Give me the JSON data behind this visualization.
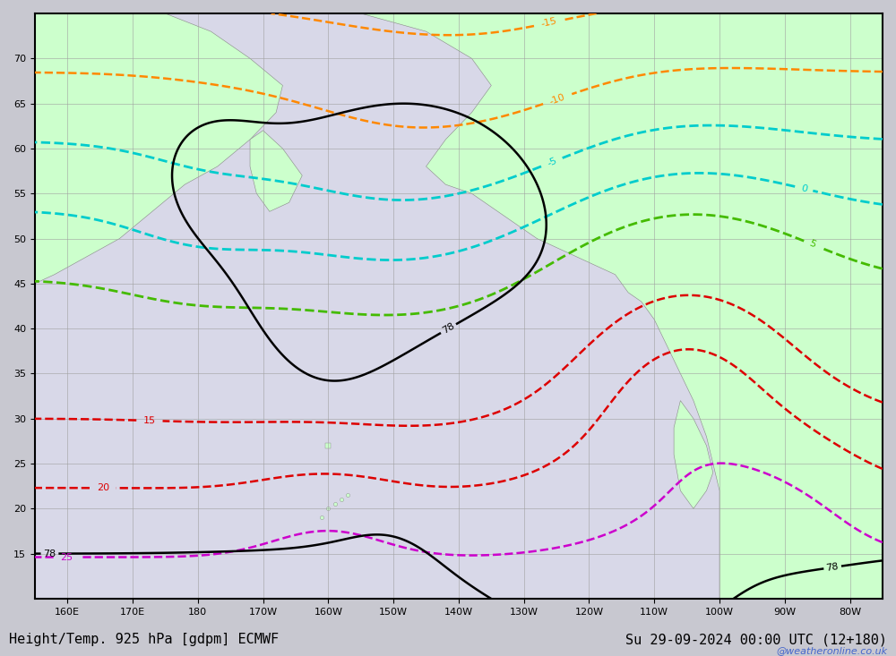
{
  "title_left": "Height/Temp. 925 hPa [gdpm] ECMWF",
  "title_right": "Su 29-09-2024 00:00 UTC (12+180)",
  "watermark": "@weatheronline.co.uk",
  "background_land": "#ccffcc",
  "background_sea": "#d8d8e8",
  "background_fig": "#c8c8d0",
  "grid_color": "#a0a0a0",
  "border_color": "#000000",
  "font_size_title": 11,
  "font_size_labels": 8,
  "font_size_watermark": 8,
  "xlim": [
    155,
    285
  ],
  "ylim": [
    10,
    75
  ],
  "xticks": [
    160,
    170,
    180,
    190,
    200,
    210,
    220,
    230,
    240,
    250,
    260,
    270,
    280
  ],
  "xtick_labels": [
    "160E",
    "170E",
    "180",
    "170W",
    "160W",
    "150W",
    "140W",
    "130W",
    "120W",
    "110W",
    "100W",
    "90W",
    "80W"
  ],
  "yticks": [
    15,
    20,
    25,
    30,
    35,
    40,
    45,
    50,
    55,
    60,
    65,
    70
  ],
  "contour_height_color": "#000000",
  "contour_cyan_color": "#00cccc",
  "contour_green_color": "#44bb00",
  "contour_orange_color": "#ff8800",
  "contour_red_color": "#dd0000",
  "contour_magenta_color": "#cc00cc",
  "fig_width": 10.0,
  "fig_height": 7.33
}
